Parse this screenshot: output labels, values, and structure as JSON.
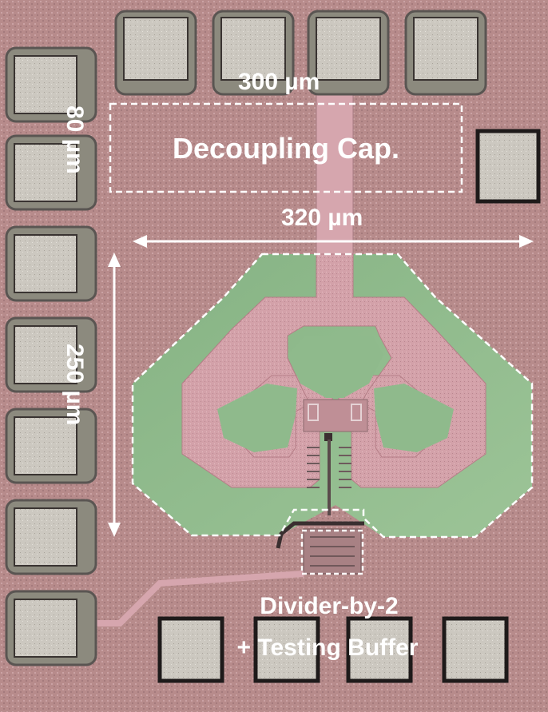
{
  "labels": {
    "width_top": "300 µm",
    "height_top": "80 µm",
    "decap": "Decoupling Cap.",
    "width_core": "320 µm",
    "height_core": "250 µm",
    "divider_line1": "Divider-by-2",
    "divider_line2": "+ Testing Buffer"
  },
  "colors": {
    "substrate": "#b58a8a",
    "metal_pink": "#d8a5ad",
    "ground_green": "#8fba8c",
    "pad_silver": "#c9c5bc",
    "pad_frame": "#2a2626",
    "annotation": "#ffffff"
  }
}
